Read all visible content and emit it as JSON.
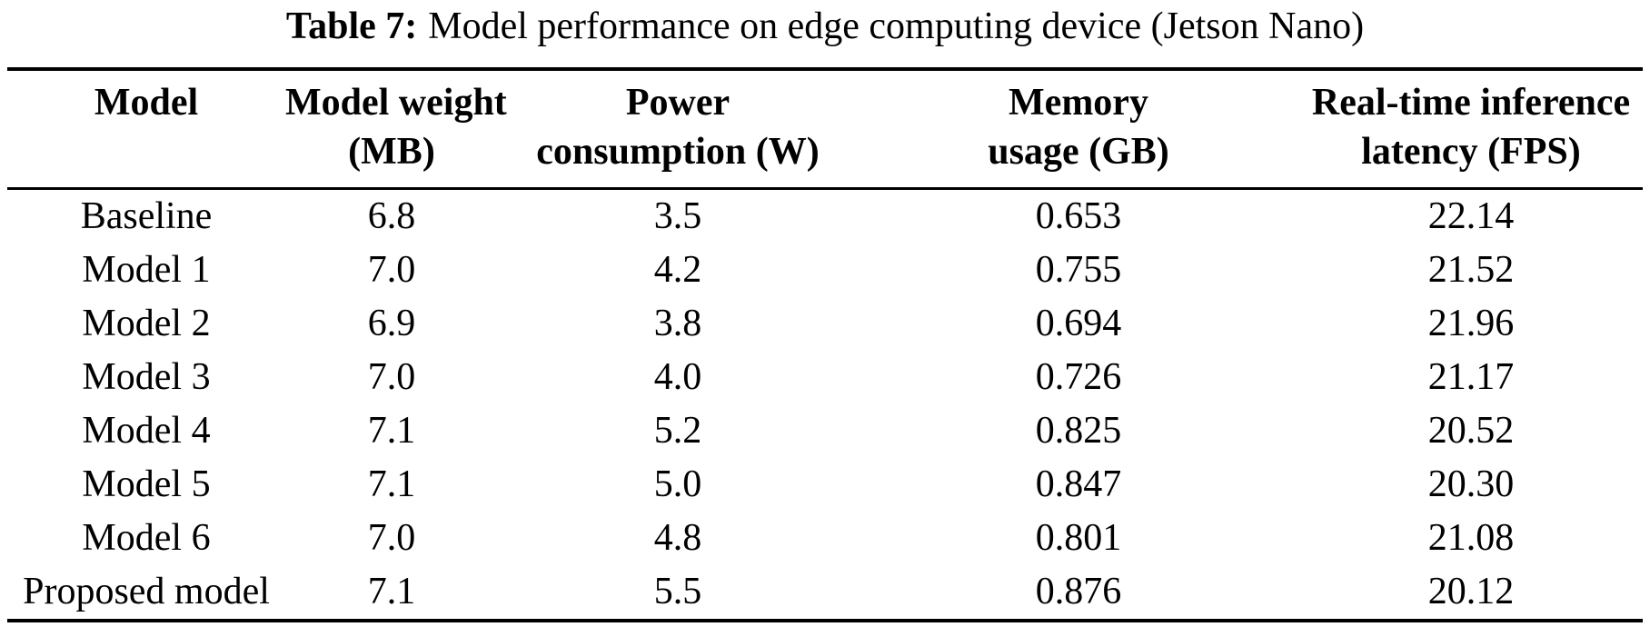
{
  "caption": {
    "label": "Table 7:",
    "text": "Model performance on edge computing device (Jetson Nano)"
  },
  "table": {
    "columns": [
      {
        "line1": "Model",
        "line2": ""
      },
      {
        "line1": "Model weight",
        "line2": "(MB)"
      },
      {
        "line1": "Power",
        "line2": "consumption (W)"
      },
      {
        "line1": "Memory",
        "line2": "usage (GB)"
      },
      {
        "line1": "Real-time inference",
        "line2": "latency (FPS)"
      }
    ],
    "rows": [
      [
        "Baseline",
        "6.8",
        "3.5",
        "0.653",
        "22.14"
      ],
      [
        "Model 1",
        "7.0",
        "4.2",
        "0.755",
        "21.52"
      ],
      [
        "Model 2",
        "6.9",
        "3.8",
        "0.694",
        "21.96"
      ],
      [
        "Model 3",
        "7.0",
        "4.0",
        "0.726",
        "21.17"
      ],
      [
        "Model 4",
        "7.1",
        "5.2",
        "0.825",
        "20.52"
      ],
      [
        "Model 5",
        "7.1",
        "5.0",
        "0.847",
        "20.30"
      ],
      [
        "Model 6",
        "7.0",
        "4.8",
        "0.801",
        "21.08"
      ],
      [
        "Proposed model",
        "7.1",
        "5.5",
        "0.876",
        "20.12"
      ]
    ]
  },
  "chart_data": {
    "type": "table",
    "title": "Table 7: Model performance on edge computing device (Jetson Nano)",
    "columns": [
      "Model",
      "Model weight (MB)",
      "Power consumption (W)",
      "Memory usage (GB)",
      "Real-time inference latency (FPS)"
    ],
    "rows": [
      {
        "model": "Baseline",
        "model_weight_mb": 6.8,
        "power_consumption_w": 3.5,
        "memory_usage_gb": 0.653,
        "inference_latency_fps": 22.14
      },
      {
        "model": "Model 1",
        "model_weight_mb": 7.0,
        "power_consumption_w": 4.2,
        "memory_usage_gb": 0.755,
        "inference_latency_fps": 21.52
      },
      {
        "model": "Model 2",
        "model_weight_mb": 6.9,
        "power_consumption_w": 3.8,
        "memory_usage_gb": 0.694,
        "inference_latency_fps": 21.96
      },
      {
        "model": "Model 3",
        "model_weight_mb": 7.0,
        "power_consumption_w": 4.0,
        "memory_usage_gb": 0.726,
        "inference_latency_fps": 21.17
      },
      {
        "model": "Model 4",
        "model_weight_mb": 7.1,
        "power_consumption_w": 5.2,
        "memory_usage_gb": 0.825,
        "inference_latency_fps": 20.52
      },
      {
        "model": "Model 5",
        "model_weight_mb": 7.1,
        "power_consumption_w": 5.0,
        "memory_usage_gb": 0.847,
        "inference_latency_fps": 20.3
      },
      {
        "model": "Model 6",
        "model_weight_mb": 7.0,
        "power_consumption_w": 4.8,
        "memory_usage_gb": 0.801,
        "inference_latency_fps": 21.08
      },
      {
        "model": "Proposed model",
        "model_weight_mb": 7.1,
        "power_consumption_w": 5.5,
        "memory_usage_gb": 0.876,
        "inference_latency_fps": 20.12
      }
    ]
  }
}
